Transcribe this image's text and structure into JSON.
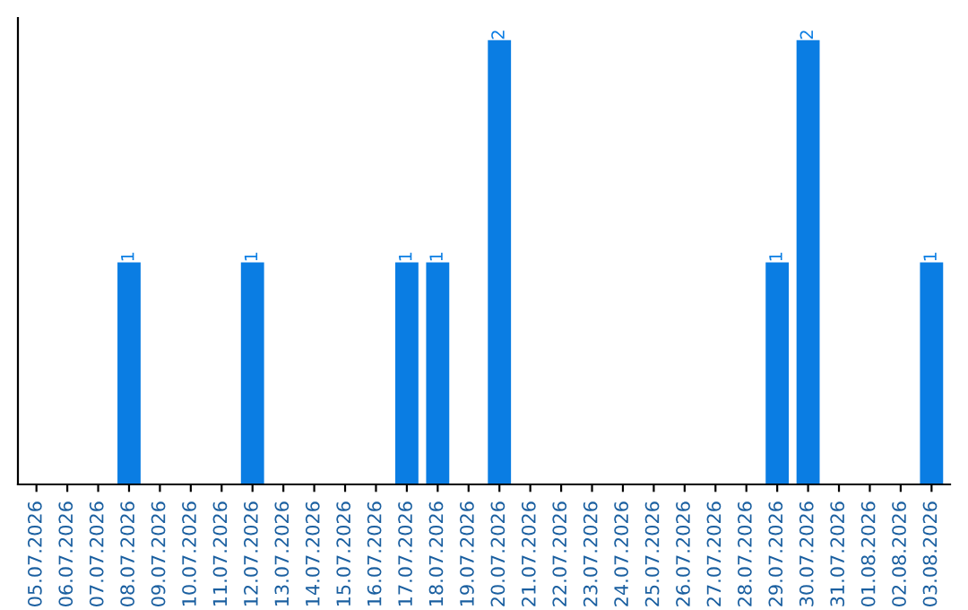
{
  "chart_data": {
    "type": "bar",
    "categories": [
      "05.07.2026",
      "06.07.2026",
      "07.07.2026",
      "08.07.2026",
      "09.07.2026",
      "10.07.2026",
      "11.07.2026",
      "12.07.2026",
      "13.07.2026",
      "14.07.2026",
      "15.07.2026",
      "16.07.2026",
      "17.07.2026",
      "18.07.2026",
      "19.07.2026",
      "20.07.2026",
      "21.07.2026",
      "22.07.2026",
      "23.07.2026",
      "24.07.2026",
      "25.07.2026",
      "26.07.2026",
      "27.07.2026",
      "28.07.2026",
      "29.07.2026",
      "30.07.2026",
      "31.07.2026",
      "01.08.2026",
      "02.08.2026",
      "03.08.2026"
    ],
    "values": [
      0,
      0,
      0,
      1,
      0,
      0,
      0,
      1,
      0,
      0,
      0,
      0,
      1,
      1,
      0,
      2,
      0,
      0,
      0,
      0,
      0,
      0,
      0,
      0,
      1,
      2,
      0,
      0,
      0,
      1
    ],
    "value_labels": [
      null,
      null,
      null,
      "1",
      null,
      null,
      null,
      "1",
      null,
      null,
      null,
      null,
      "1",
      "1",
      null,
      "2",
      null,
      null,
      null,
      null,
      null,
      null,
      null,
      null,
      "1",
      "2",
      null,
      null,
      null,
      "1"
    ],
    "color": "#0a7de3",
    "grid": false,
    "legend": false
  }
}
